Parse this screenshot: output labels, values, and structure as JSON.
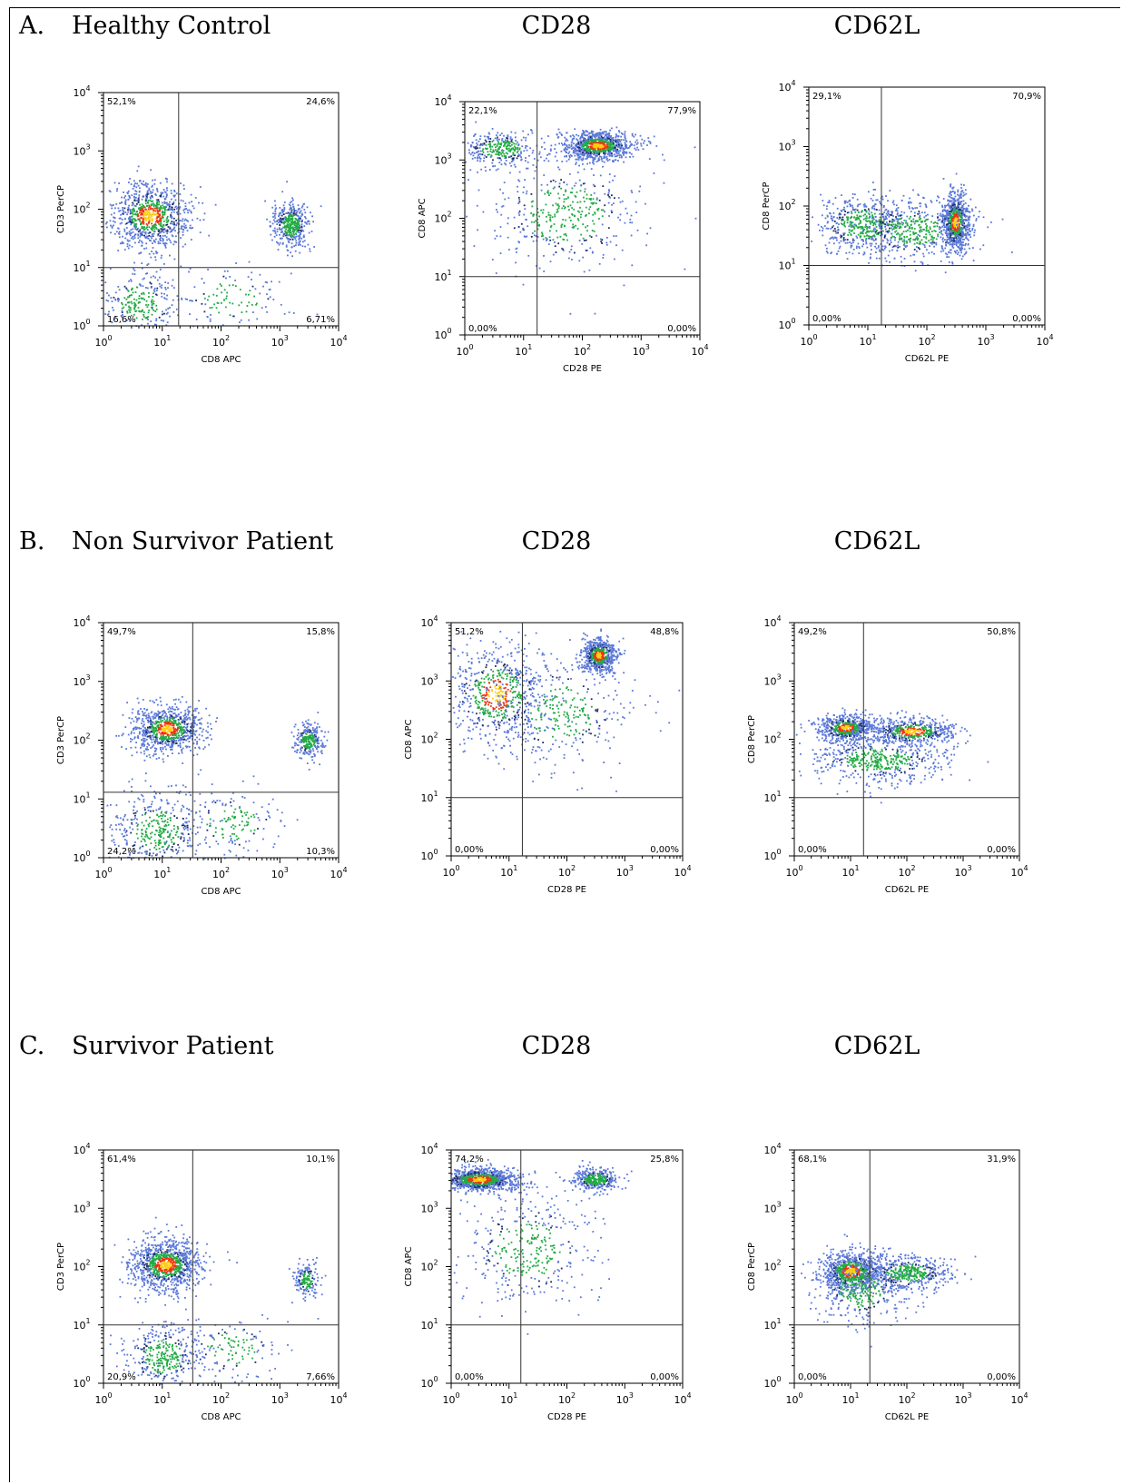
{
  "rows": [
    {
      "letter": "A.",
      "title": "Healthy Control",
      "col_titles": [
        "CD28",
        "CD62L"
      ]
    },
    {
      "letter": "B.",
      "title": "Non Survivor Patient",
      "col_titles": [
        "CD28",
        "CD62L"
      ]
    },
    {
      "letter": "C.",
      "title": "Survivor Patient",
      "col_titles": [
        "CD28",
        "CD62L"
      ]
    }
  ],
  "colors": {
    "low": "#5a78d8",
    "mid": "#22aa44",
    "high": "#ee3311",
    "peak": "#ffcc11"
  },
  "chart_data": [
    {
      "type": "scatter",
      "panel": "A-1",
      "xlabel": "CD8 APC",
      "ylabel": "CD3 PerCP",
      "xlim": [
        1,
        10000
      ],
      "ylim": [
        1,
        10000
      ],
      "scale": "log",
      "gate": {
        "x": 19,
        "y": 10
      },
      "quadrants": {
        "upper_left": "52,1%",
        "upper_right": "24,6%",
        "lower_left": "16,6%",
        "lower_right": "6,71%"
      },
      "clusters": [
        {
          "x": 6,
          "y": 80,
          "sx": 0.35,
          "sy": 0.28,
          "weight": 0.52
        },
        {
          "x": 1500,
          "y": 55,
          "sx": 0.15,
          "sy": 0.2,
          "weight": 0.25
        },
        {
          "x": 4,
          "y": 2.5,
          "sx": 0.35,
          "sy": 0.3,
          "weight": 0.16
        },
        {
          "x": 150,
          "y": 3,
          "sx": 0.5,
          "sy": 0.3,
          "weight": 0.07
        }
      ]
    },
    {
      "type": "scatter",
      "panel": "A-2",
      "xlabel": "CD28 PE",
      "ylabel": "CD8 APC",
      "xlim": [
        1,
        10000
      ],
      "ylim": [
        1,
        10000
      ],
      "scale": "log",
      "gate": {
        "x": 17,
        "y": 10
      },
      "quadrants": {
        "upper_left": "22,1%",
        "upper_right": "77,9%",
        "lower_left": "0,00%",
        "lower_right": "0,00%"
      },
      "clusters": [
        {
          "x": 180,
          "y": 1800,
          "sx": 0.3,
          "sy": 0.12,
          "weight": 0.55
        },
        {
          "x": 4,
          "y": 1600,
          "sx": 0.35,
          "sy": 0.15,
          "weight": 0.2
        },
        {
          "x": 50,
          "y": 120,
          "sx": 0.7,
          "sy": 0.5,
          "weight": 0.25
        }
      ]
    },
    {
      "type": "scatter",
      "panel": "A-3",
      "xlabel": "CD62L PE",
      "ylabel": "CD8 PerCP",
      "xlim": [
        1,
        10000
      ],
      "ylim": [
        1,
        10000
      ],
      "scale": "log",
      "gate": {
        "x": 17,
        "y": 10
      },
      "quadrants": {
        "upper_left": "29,1%",
        "upper_right": "70,9%",
        "lower_left": "0,00%",
        "lower_right": "0,00%"
      },
      "clusters": [
        {
          "x": 300,
          "y": 55,
          "sx": 0.12,
          "sy": 0.25,
          "weight": 0.45
        },
        {
          "x": 8,
          "y": 50,
          "sx": 0.4,
          "sy": 0.25,
          "weight": 0.3
        },
        {
          "x": 60,
          "y": 40,
          "sx": 0.5,
          "sy": 0.25,
          "weight": 0.25
        }
      ]
    },
    {
      "type": "scatter",
      "panel": "B-1",
      "xlabel": "CD8 APC",
      "ylabel": "CD3 PerCP",
      "xlim": [
        1,
        10000
      ],
      "ylim": [
        1,
        10000
      ],
      "scale": "log",
      "gate": {
        "x": 33,
        "y": 13
      },
      "quadrants": {
        "upper_left": "49,7%",
        "upper_right": "15,8%",
        "lower_left": "24,2%",
        "lower_right": "10,3%"
      },
      "clusters": [
        {
          "x": 12,
          "y": 160,
          "sx": 0.3,
          "sy": 0.2,
          "weight": 0.5
        },
        {
          "x": 3000,
          "y": 100,
          "sx": 0.12,
          "sy": 0.15,
          "weight": 0.16
        },
        {
          "x": 8,
          "y": 3,
          "sx": 0.4,
          "sy": 0.35,
          "weight": 0.24
        },
        {
          "x": 150,
          "y": 4,
          "sx": 0.45,
          "sy": 0.3,
          "weight": 0.1
        }
      ]
    },
    {
      "type": "scatter",
      "panel": "B-2",
      "xlabel": "CD28 PE",
      "ylabel": "CD8 APC",
      "xlim": [
        1,
        10000
      ],
      "ylim": [
        1,
        10000
      ],
      "scale": "log",
      "gate": {
        "x": 17,
        "y": 10
      },
      "quadrants": {
        "upper_left": "51,2%",
        "upper_right": "48,8%",
        "lower_left": "0,00%",
        "lower_right": "0,00%"
      },
      "clusters": [
        {
          "x": 350,
          "y": 2800,
          "sx": 0.15,
          "sy": 0.15,
          "weight": 0.4
        },
        {
          "x": 6,
          "y": 600,
          "sx": 0.45,
          "sy": 0.45,
          "weight": 0.4
        },
        {
          "x": 80,
          "y": 300,
          "sx": 0.6,
          "sy": 0.5,
          "weight": 0.2
        }
      ]
    },
    {
      "type": "scatter",
      "panel": "B-3",
      "xlabel": "CD62L PE",
      "ylabel": "CD8 PerCP",
      "xlim": [
        1,
        10000
      ],
      "ylim": [
        1,
        10000
      ],
      "scale": "log",
      "gate": {
        "x": 17,
        "y": 10
      },
      "quadrants": {
        "upper_left": "49,2%",
        "upper_right": "50,8%",
        "lower_left": "0,00%",
        "lower_right": "0,00%"
      },
      "clusters": [
        {
          "x": 8,
          "y": 160,
          "sx": 0.25,
          "sy": 0.12,
          "weight": 0.35
        },
        {
          "x": 120,
          "y": 140,
          "sx": 0.4,
          "sy": 0.12,
          "weight": 0.35
        },
        {
          "x": 30,
          "y": 45,
          "sx": 0.6,
          "sy": 0.2,
          "weight": 0.3
        }
      ]
    },
    {
      "type": "scatter",
      "panel": "C-1",
      "xlabel": "CD8 APC",
      "ylabel": "CD3 PerCP",
      "xlim": [
        1,
        10000
      ],
      "ylim": [
        1,
        10000
      ],
      "scale": "log",
      "gate": {
        "x": 33,
        "y": 10
      },
      "quadrants": {
        "upper_left": "61,4%",
        "upper_right": "10,1%",
        "lower_left": "20,9%",
        "lower_right": "7,66%"
      },
      "clusters": [
        {
          "x": 11,
          "y": 110,
          "sx": 0.3,
          "sy": 0.22,
          "weight": 0.6
        },
        {
          "x": 2800,
          "y": 60,
          "sx": 0.1,
          "sy": 0.15,
          "weight": 0.1
        },
        {
          "x": 10,
          "y": 3,
          "sx": 0.35,
          "sy": 0.3,
          "weight": 0.22
        },
        {
          "x": 150,
          "y": 4,
          "sx": 0.45,
          "sy": 0.3,
          "weight": 0.08
        }
      ]
    },
    {
      "type": "scatter",
      "panel": "C-2",
      "xlabel": "CD28 PE",
      "ylabel": "CD8 APC",
      "xlim": [
        1,
        10000
      ],
      "ylim": [
        1,
        10000
      ],
      "scale": "log",
      "gate": {
        "x": 16,
        "y": 10
      },
      "quadrants": {
        "upper_left": "74,2%",
        "upper_right": "25,8%",
        "lower_left": "0,00%",
        "lower_right": "0,00%"
      },
      "clusters": [
        {
          "x": 3,
          "y": 3200,
          "sx": 0.35,
          "sy": 0.1,
          "weight": 0.55
        },
        {
          "x": 300,
          "y": 3200,
          "sx": 0.2,
          "sy": 0.1,
          "weight": 0.22
        },
        {
          "x": 20,
          "y": 200,
          "sx": 0.6,
          "sy": 0.5,
          "weight": 0.23
        }
      ]
    },
    {
      "type": "scatter",
      "panel": "C-3",
      "xlabel": "CD62L PE",
      "ylabel": "CD8 PerCP",
      "xlim": [
        1,
        10000
      ],
      "ylim": [
        1,
        10000
      ],
      "scale": "log",
      "gate": {
        "x": 22,
        "y": 10
      },
      "quadrants": {
        "upper_left": "68,1%",
        "upper_right": "31,9%",
        "lower_left": "0,00%",
        "lower_right": "0,00%"
      },
      "clusters": [
        {
          "x": 10,
          "y": 85,
          "sx": 0.28,
          "sy": 0.18,
          "weight": 0.5
        },
        {
          "x": 100,
          "y": 80,
          "sx": 0.4,
          "sy": 0.15,
          "weight": 0.3
        },
        {
          "x": 15,
          "y": 40,
          "sx": 0.4,
          "sy": 0.3,
          "weight": 0.2
        }
      ]
    }
  ]
}
